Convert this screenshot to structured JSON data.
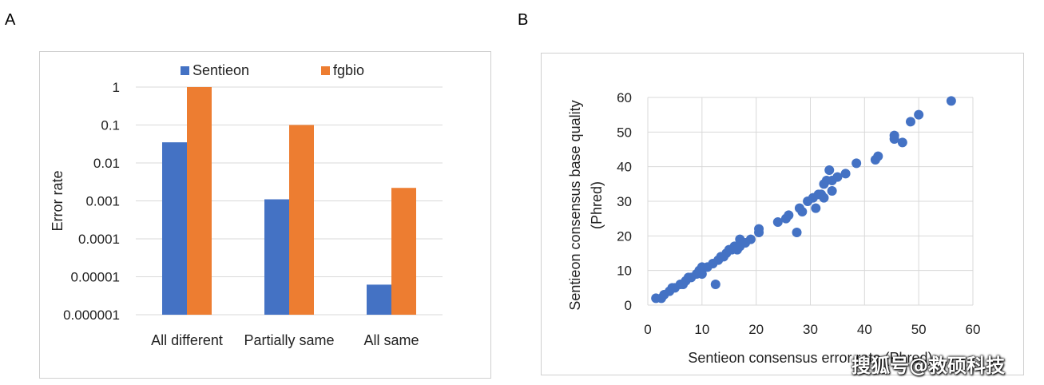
{
  "panels": {
    "a_letter": "A",
    "b_letter": "B"
  },
  "watermark": "搜狐号@救硕科技",
  "chart_data": [
    {
      "type": "bar",
      "scale": "log",
      "title": "",
      "ylabel": "Error rate",
      "xlabel": "",
      "ylim": [
        1e-06,
        1
      ],
      "yticks": [
        "1",
        "0.1",
        "0.01",
        "0.001",
        "0.0001",
        "0.00001",
        "0.000001"
      ],
      "categories": [
        "All different",
        "Partially same",
        "All same"
      ],
      "legend": "top",
      "grid": true,
      "series": [
        {
          "name": "Sentieon",
          "color": "#4472c4",
          "values": [
            0.035,
            0.0011,
            6.2e-06
          ]
        },
        {
          "name": "fgbio",
          "color": "#ed7d31",
          "values": [
            1,
            0.1,
            0.0022
          ]
        }
      ]
    },
    {
      "type": "scatter",
      "title": "",
      "xlabel": "Sentieon consensus error rate (Phred)",
      "ylabel_line1": "Sentieon consensus base quality",
      "ylabel_line2": "(Phred)",
      "xlim": [
        0,
        60
      ],
      "ylim": [
        0,
        60
      ],
      "xticks": [
        0,
        10,
        20,
        30,
        40,
        50,
        60
      ],
      "yticks": [
        0,
        10,
        20,
        30,
        40,
        50,
        60
      ],
      "grid": true,
      "color": "#4472c4",
      "points": [
        [
          1.5,
          2
        ],
        [
          2.5,
          2
        ],
        [
          3,
          3
        ],
        [
          4,
          4
        ],
        [
          4.5,
          5
        ],
        [
          5,
          5
        ],
        [
          6,
          6
        ],
        [
          6.5,
          6
        ],
        [
          7,
          7
        ],
        [
          7.5,
          8
        ],
        [
          8,
          8
        ],
        [
          9,
          9
        ],
        [
          9.5,
          10
        ],
        [
          10,
          9
        ],
        [
          10,
          11
        ],
        [
          11,
          11
        ],
        [
          12,
          12
        ],
        [
          12.5,
          6
        ],
        [
          13,
          13
        ],
        [
          13.5,
          14
        ],
        [
          14,
          14
        ],
        [
          14.5,
          15
        ],
        [
          15,
          16
        ],
        [
          15.5,
          16
        ],
        [
          16,
          17
        ],
        [
          16.5,
          16
        ],
        [
          17,
          17
        ],
        [
          17,
          19
        ],
        [
          18,
          18
        ],
        [
          19,
          19
        ],
        [
          20.5,
          21
        ],
        [
          20.5,
          22
        ],
        [
          24,
          24
        ],
        [
          25.5,
          25
        ],
        [
          26,
          26
        ],
        [
          27.5,
          21
        ],
        [
          28,
          28
        ],
        [
          28.5,
          27
        ],
        [
          29.5,
          30
        ],
        [
          30.5,
          31
        ],
        [
          31,
          28
        ],
        [
          31.5,
          32
        ],
        [
          32,
          32
        ],
        [
          32.5,
          31
        ],
        [
          32.5,
          35
        ],
        [
          33,
          36
        ],
        [
          33.5,
          39
        ],
        [
          34,
          33
        ],
        [
          34,
          36
        ],
        [
          35,
          37
        ],
        [
          36.5,
          38
        ],
        [
          38.5,
          41
        ],
        [
          42,
          42
        ],
        [
          42.5,
          43
        ],
        [
          45.5,
          48
        ],
        [
          45.5,
          49
        ],
        [
          47,
          47
        ],
        [
          48.5,
          53
        ],
        [
          50,
          55
        ],
        [
          56,
          59
        ]
      ]
    }
  ]
}
